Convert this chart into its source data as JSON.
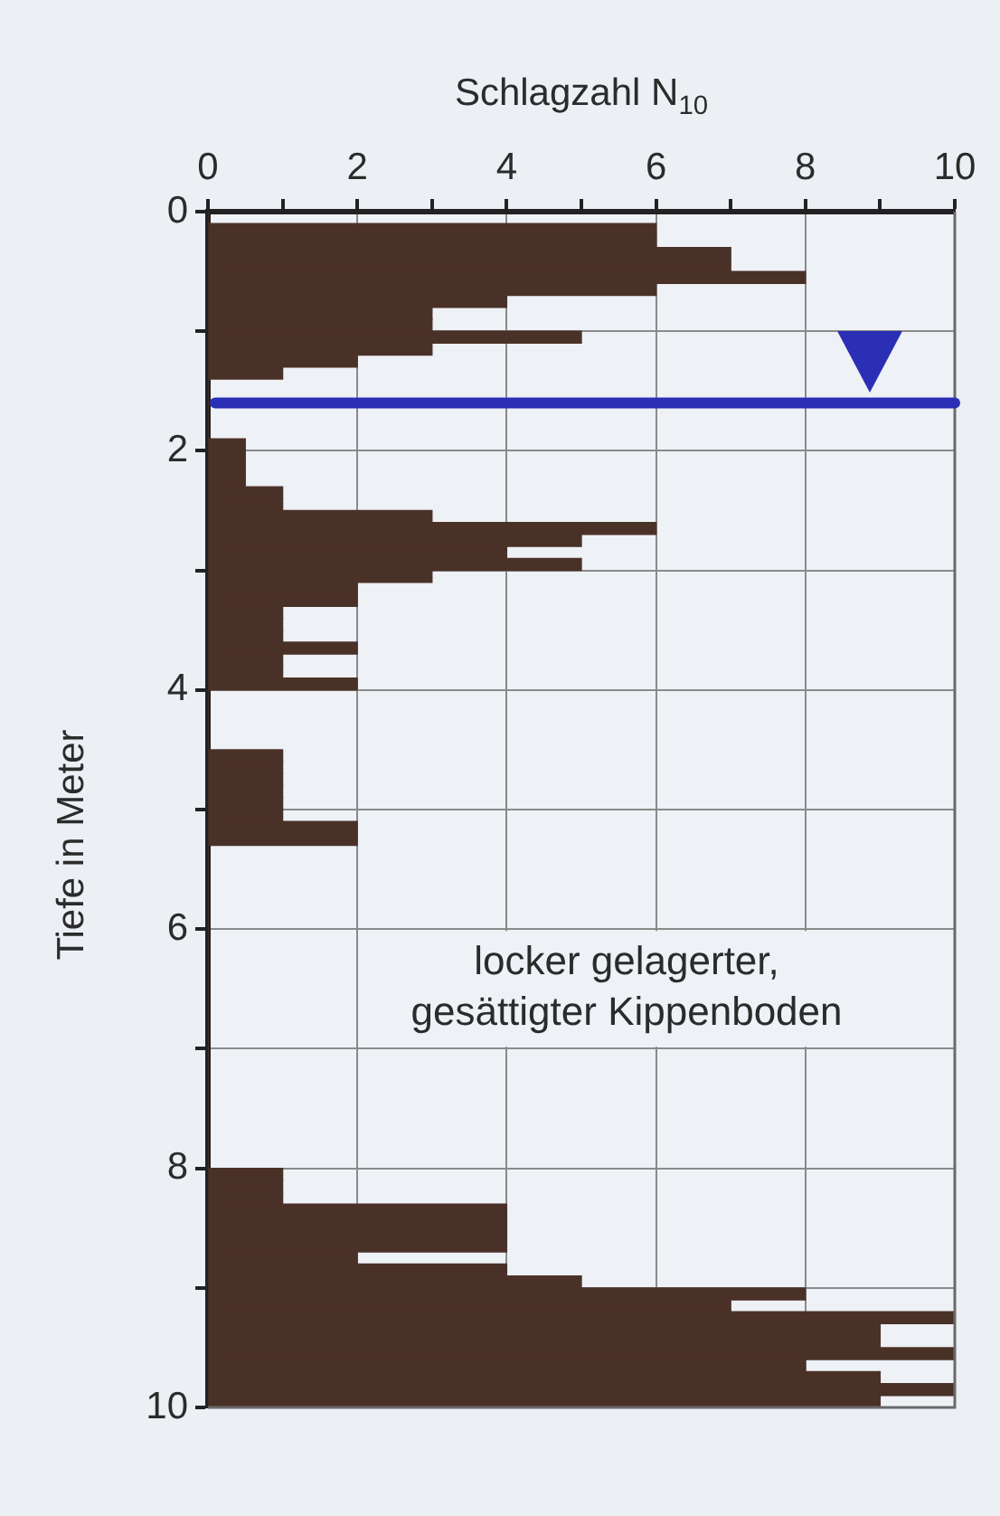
{
  "chart_data": {
    "type": "histogram",
    "orientation": "horizontal",
    "xlabel": "Schlagzahl N$_{10}$",
    "ylabel": "Tiefe in Meter",
    "bins": [
      0,
      0.1,
      0.2,
      0.3,
      0.4,
      0.5,
      0.6,
      0.7,
      0.8,
      0.9,
      1,
      1.1,
      1.2,
      1.3,
      1.4,
      1.5,
      1.6,
      1.7,
      1.8,
      1.9,
      2,
      2.1,
      2.2,
      2.3,
      2.4,
      2.5,
      2.6,
      2.7,
      2.8,
      2.9,
      3,
      3.1,
      3.2,
      3.3,
      3.4,
      3.5,
      3.6,
      3.7,
      3.8,
      3.9,
      4,
      4.1,
      4.2,
      4.3,
      4.4,
      4.5,
      4.6,
      4.7,
      4.8,
      4.9,
      5,
      5.1,
      5.2,
      5.3,
      5.4,
      5.5,
      5.6,
      5.7,
      5.8,
      5.9,
      6,
      6.1,
      6.2,
      6.3,
      6.4,
      6.5,
      6.6,
      6.7,
      6.8,
      6.9,
      7,
      7.1,
      7.2,
      7.3,
      7.4,
      7.5,
      7.6,
      7.7,
      7.8,
      7.9,
      8,
      8.1,
      8.2,
      8.3,
      8.4,
      8.5,
      8.6,
      8.7,
      8.8,
      8.9,
      9,
      9.1,
      9.2,
      9.3,
      9.4,
      9.5,
      9.6,
      9.7,
      9.8,
      9.9,
      10
    ],
    "values": [
      0,
      6,
      6,
      7,
      7,
      8,
      6,
      4,
      3,
      3,
      5,
      3,
      2,
      1,
      0,
      0,
      0,
      0,
      0,
      0.5,
      0.5,
      0.5,
      0.5,
      1,
      1,
      3,
      6,
      5,
      4,
      5,
      3,
      2,
      2,
      1,
      1,
      1,
      2,
      1,
      1,
      2,
      0,
      0,
      0,
      0,
      0,
      1,
      1,
      1,
      1,
      1,
      1,
      2,
      2,
      0,
      0,
      0,
      0,
      0,
      0,
      0,
      0,
      0,
      0,
      0,
      0,
      0,
      0,
      0,
      0,
      0,
      0,
      0,
      0,
      0,
      0,
      0,
      0,
      0,
      0,
      0,
      1,
      1,
      1,
      4,
      4,
      4,
      4,
      2,
      4,
      5,
      8,
      7,
      10,
      9,
      9,
      10,
      8,
      9,
      10,
      9
    ],
    "color": "#4a3128",
    "xlim": [
      0,
      10
    ],
    "xticks": [
      0,
      {
        "value": 1,
        "label": null
      },
      2,
      {
        "value": 3,
        "label": null
      },
      4,
      {
        "value": 5,
        "label": null
      },
      6,
      {
        "value": 7,
        "label": null
      },
      8,
      {
        "value": 9,
        "label": null
      },
      10
    ],
    "ylim": [
      10,
      0
    ],
    "yticks": [
      0,
      {
        "value": 1,
        "label": null
      },
      2,
      {
        "value": 3,
        "label": null
      },
      4,
      {
        "value": 5,
        "label": null
      },
      6,
      {
        "value": 7,
        "label": null
      },
      8,
      {
        "value": 9,
        "label": null
      },
      10
    ],
    "grid": true,
    "ref_lines": [
      {
        "axis": "y",
        "value": 1.6,
        "color": "#2b2fb5"
      }
    ],
    "annotations": [
      "locker gelagerter,\ngesättigter Kippenboden"
    ]
  }
}
